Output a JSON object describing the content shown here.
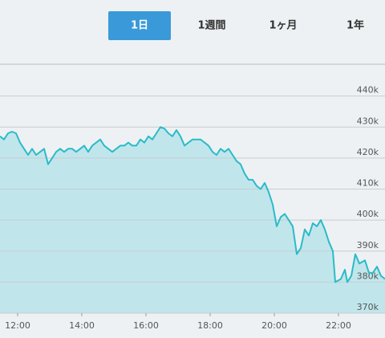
{
  "tabs": [
    "1日",
    "1週間",
    "1ヶ月",
    "1年"
  ],
  "selected_tab": 0,
  "chart_data": {
    "type": "area",
    "color": "#2bbbc8",
    "fill": "#c0e6ec",
    "xlim": [
      11.45,
      23.45
    ],
    "xticks": [
      {
        "value": 12,
        "label": "12:00"
      },
      {
        "value": 14,
        "label": "14:00"
      },
      {
        "value": 16,
        "label": "16:00"
      },
      {
        "value": 18,
        "label": "18:00"
      },
      {
        "value": 20,
        "label": "20:00"
      },
      {
        "value": 22,
        "label": "22:00"
      }
    ],
    "ylim": [
      370000,
      450000
    ],
    "yticks": [
      {
        "value": 370000,
        "label": "370k"
      },
      {
        "value": 380000,
        "label": "380k"
      },
      {
        "value": 390000,
        "label": "390k"
      },
      {
        "value": 400000,
        "label": "400k"
      },
      {
        "value": 410000,
        "label": "410k"
      },
      {
        "value": 420000,
        "label": "420k"
      },
      {
        "value": 430000,
        "label": "430k"
      },
      {
        "value": 440000,
        "label": "440k"
      }
    ],
    "grid": true,
    "x": [
      11.45,
      11.575,
      11.7,
      11.825,
      11.95,
      12.075,
      12.2,
      12.325,
      12.45,
      12.575,
      12.7,
      12.825,
      12.95,
      13.075,
      13.2,
      13.325,
      13.45,
      13.575,
      13.7,
      13.825,
      13.95,
      14.075,
      14.2,
      14.325,
      14.45,
      14.575,
      14.7,
      14.825,
      14.95,
      15.075,
      15.2,
      15.325,
      15.45,
      15.575,
      15.7,
      15.825,
      15.95,
      16.075,
      16.2,
      16.325,
      16.45,
      16.575,
      16.7,
      16.825,
      16.95,
      17.075,
      17.2,
      17.325,
      17.45,
      17.575,
      17.7,
      17.825,
      17.95,
      18.075,
      18.2,
      18.325,
      18.45,
      18.575,
      18.7,
      18.825,
      18.95,
      19.075,
      19.2,
      19.325,
      19.45,
      19.575,
      19.7,
      19.825,
      19.95,
      20.075,
      20.2,
      20.325,
      20.45,
      20.575,
      20.7,
      20.825,
      20.95,
      21.075,
      21.2,
      21.325,
      21.45,
      21.575,
      21.7,
      21.825,
      21.9,
      22.075,
      22.2,
      22.275,
      22.4,
      22.525,
      22.65,
      22.825,
      22.95,
      23.075,
      23.2,
      23.325,
      23.45
    ],
    "values": [
      427000,
      426000,
      428000,
      428500,
      428000,
      425000,
      423000,
      421000,
      423000,
      421000,
      422000,
      423000,
      418000,
      420000,
      422000,
      423000,
      422000,
      423000,
      423000,
      422000,
      423000,
      424000,
      422000,
      424000,
      425000,
      426000,
      424000,
      423000,
      422000,
      423000,
      424000,
      424000,
      425000,
      424000,
      424000,
      426000,
      425000,
      427000,
      426000,
      428000,
      430000,
      429500,
      428000,
      427000,
      429000,
      427000,
      424000,
      425000,
      426000,
      426000,
      426000,
      425000,
      424000,
      422000,
      421000,
      423000,
      422000,
      423000,
      421000,
      419000,
      418000,
      415000,
      413000,
      413000,
      411000,
      410000,
      412000,
      409000,
      405000,
      398000,
      401000,
      402000,
      400000,
      398000,
      389000,
      391000,
      397000,
      395000,
      399000,
      398000,
      400000,
      397000,
      393000,
      390000,
      380000,
      381000,
      384000,
      380000,
      382000,
      389000,
      386000,
      387000,
      383000,
      383000,
      385000,
      382000,
      381000
    ]
  }
}
